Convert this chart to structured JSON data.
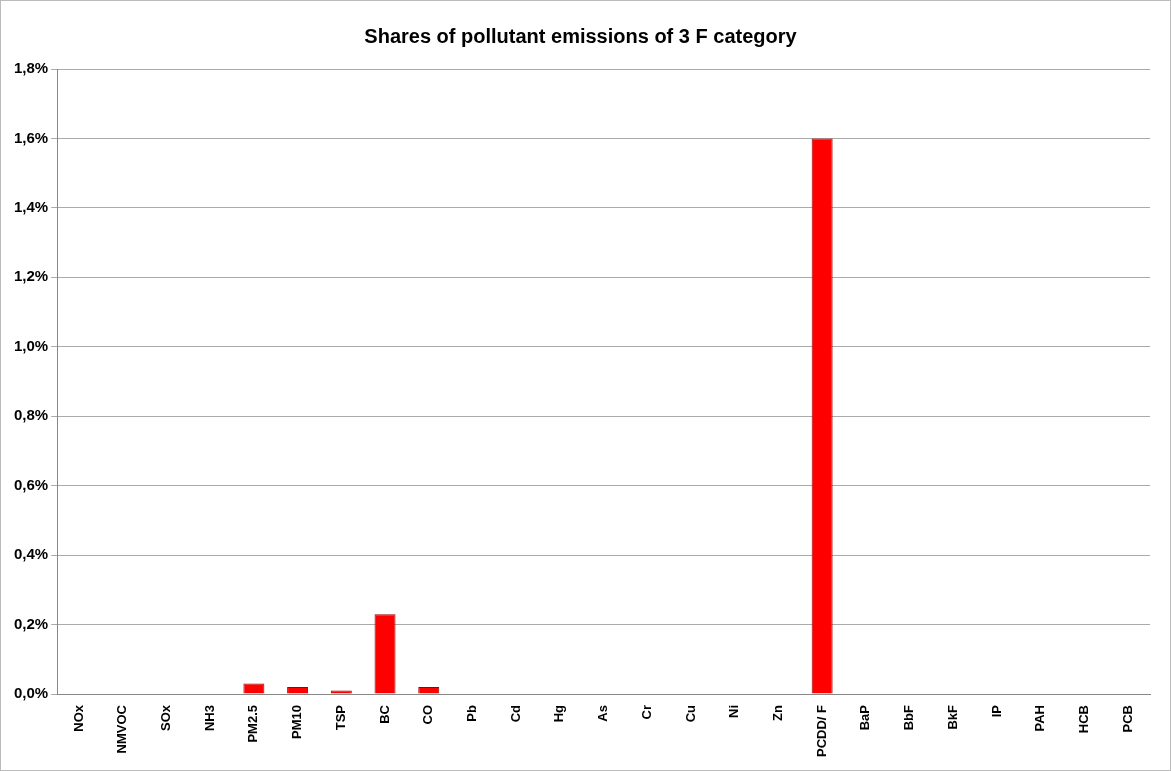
{
  "chart_data": {
    "type": "bar",
    "title": "Shares of pollutant emissions of 3 F category",
    "categories": [
      "NOx",
      "NMVOC",
      "SOx",
      "NH3",
      "PM2.5",
      "PM10",
      "TSP",
      "BC",
      "CO",
      "Pb",
      "Cd",
      "Hg",
      "As",
      "Cr",
      "Cu",
      "Ni",
      "Zn",
      "PCDD/ F",
      "BaP",
      "BbF",
      "BkF",
      "IP",
      "PAH",
      "HCB",
      "PCB"
    ],
    "values": [
      0,
      0,
      0,
      0,
      0.03,
      0.02,
      0.01,
      0.23,
      0.02,
      0,
      0,
      0,
      0,
      0,
      0,
      0,
      0,
      1.6,
      0,
      0,
      0,
      0,
      0,
      0,
      0
    ],
    "color": "#ff0000",
    "ylim": [
      0,
      1.8
    ],
    "yticks": [
      {
        "value": 0,
        "label": "0,0%"
      },
      {
        "value": 0.2,
        "label": "0,2%"
      },
      {
        "value": 0.4,
        "label": "0,4%"
      },
      {
        "value": 0.6,
        "label": "0,6%"
      },
      {
        "value": 0.8,
        "label": "0,8%"
      },
      {
        "value": 1,
        "label": "1,0%"
      },
      {
        "value": 1.2,
        "label": "1,2%"
      },
      {
        "value": 1.4,
        "label": "1,4%"
      },
      {
        "value": 1.6,
        "label": "1,6%"
      },
      {
        "value": 1.8,
        "label": "1,8%"
      }
    ],
    "grid": "y",
    "legend": false
  }
}
